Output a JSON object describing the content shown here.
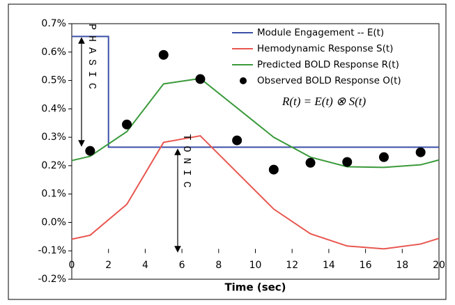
{
  "chart_data": {
    "type": "line",
    "xlabel": "Time (sec)",
    "xlim": [
      0,
      20
    ],
    "xticks": [
      0,
      2,
      4,
      6,
      8,
      10,
      12,
      14,
      16,
      18,
      20
    ],
    "ylim": [
      -0.2,
      0.7
    ],
    "yticks": [
      {
        "value": -0.2,
        "label": "-0.2%"
      },
      {
        "value": -0.1,
        "label": "-0.1%"
      },
      {
        "value": 0,
        "label": "0.0%"
      },
      {
        "value": 0.1,
        "label": "0.1%"
      },
      {
        "value": 0.2,
        "label": "0.2%"
      },
      {
        "value": 0.3,
        "label": "0.3%"
      },
      {
        "value": 0.4,
        "label": "0.4%"
      },
      {
        "value": 0.5,
        "label": "0.5%"
      },
      {
        "value": 0.6,
        "label": "0.6%"
      },
      {
        "value": 0.7,
        "label": "0.7%"
      }
    ],
    "legend": "top-right",
    "series": [
      {
        "name": "Module Engagement -- E(t)",
        "color": "#3b4fa8",
        "style": "line",
        "x": [
          0,
          2,
          2,
          20
        ],
        "values": [
          0.655,
          0.655,
          0.265,
          0.265
        ]
      },
      {
        "name": "Hemodynamic Response S(t)",
        "color": "#e8564f",
        "style": "line",
        "x": [
          0,
          1,
          3,
          5,
          7,
          11,
          13,
          15,
          17,
          19,
          20
        ],
        "values": [
          -0.059,
          -0.045,
          0.064,
          0.282,
          0.305,
          0.047,
          -0.04,
          -0.083,
          -0.093,
          -0.076,
          -0.056
        ]
      },
      {
        "name": "Predicted BOLD Response R(t)",
        "color": "#3a9a3a",
        "style": "line",
        "x": [
          0,
          1,
          3,
          5,
          7,
          11,
          13,
          15,
          17,
          19,
          20
        ],
        "values": [
          0.218,
          0.233,
          0.32,
          0.488,
          0.507,
          0.3,
          0.23,
          0.196,
          0.194,
          0.203,
          0.22
        ]
      },
      {
        "name": "Observed BOLD Response O(t)",
        "color": "#000000",
        "style": "dots",
        "x": [
          1,
          3,
          5,
          7,
          9,
          11,
          13,
          15,
          17,
          19
        ],
        "values": [
          0.252,
          0.345,
          0.59,
          0.505,
          0.289,
          0.186,
          0.21,
          0.213,
          0.23,
          0.247
        ]
      }
    ],
    "annotations": {
      "phasic": "PHASIC",
      "tonic": "TONIC",
      "equation": "R(t) = E(t) ⊗ S(t)"
    }
  }
}
